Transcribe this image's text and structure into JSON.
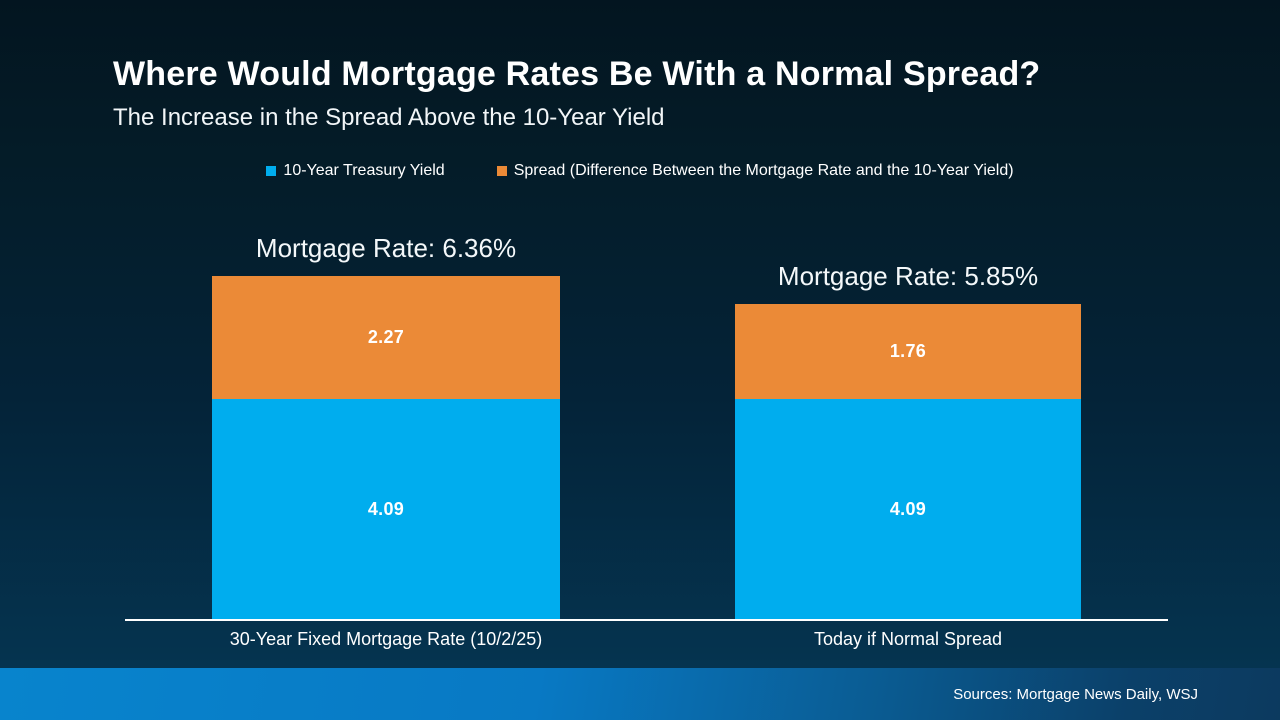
{
  "slide": {
    "title": "Where Would Mortgage Rates Be With a Normal Spread?",
    "subtitle": "The Increase in the Spread Above the 10-Year Yield",
    "source": "Sources: Mortgage News Daily, WSJ"
  },
  "colors": {
    "background_top": "#031520",
    "background_bottom": "#053450",
    "treasury_blue": "#00adee",
    "spread_orange": "#eb8a37",
    "footer_blue_left": "#0884cd",
    "footer_blue_right": "#0c3a5f",
    "axis_line": "#ffffff",
    "text": "#ffffff"
  },
  "chart_data": {
    "type": "bar",
    "stacked": true,
    "title": "Where Would Mortgage Rates Be With a Normal Spread?",
    "subtitle": "The Increase in the Spread Above the 10-Year Yield",
    "categories": [
      "30-Year Fixed Mortgage Rate (10/2/25)",
      "Today if Normal Spread"
    ],
    "series": [
      {
        "name": "10-Year Treasury Yield",
        "color": "#00adee",
        "values": [
          4.09,
          4.09
        ]
      },
      {
        "name": "Spread (Difference Between the Mortgage Rate and the 10-Year Yield)",
        "color": "#eb8a37",
        "values": [
          2.27,
          1.76
        ]
      }
    ],
    "totals": [
      6.36,
      5.85
    ],
    "total_labels": [
      "Mortgage Rate: 6.36%",
      "Mortgage Rate: 5.85%"
    ],
    "value_labels_shown": true,
    "legend_position": "top",
    "grid": false,
    "ylim": [
      0,
      6.36
    ],
    "source": "Sources: Mortgage News Daily, WSJ"
  }
}
